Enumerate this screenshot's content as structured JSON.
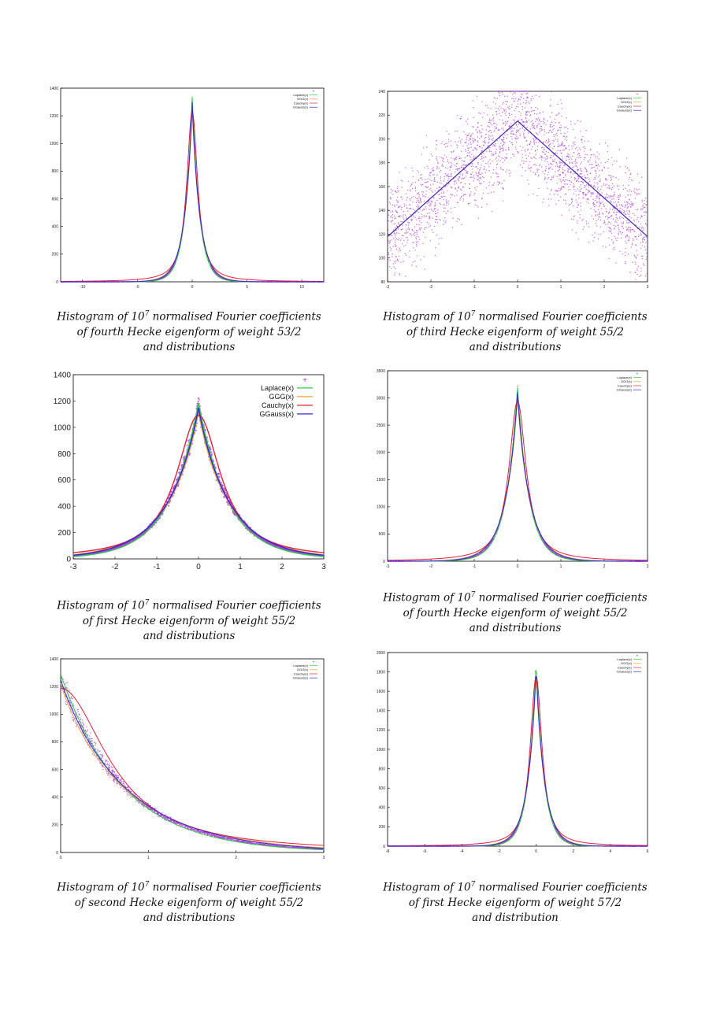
{
  "figures": [
    {
      "caption": {
        "prefix": "Histogram of 10",
        "exp": "7",
        "suffix": " normalised Fourier coefficients",
        "line2": "of fourth Hecke eigenform of weight 53/2",
        "line3": "and distributions"
      },
      "chart_data": {
        "type": "scatter",
        "xlim": [
          -12,
          12
        ],
        "ylim": [
          0,
          1400
        ],
        "xticks": [
          -10,
          -5,
          0,
          5,
          10
        ],
        "yticks": [
          0,
          200,
          400,
          600,
          800,
          1000,
          1200,
          1400
        ],
        "peak": 1300,
        "center": 0,
        "scale": 0.7,
        "noise": 0.02,
        "legend": [
          "Laplace(x)",
          "GGG(x)",
          "Cauchy(x)",
          "GGauss(x)"
        ],
        "legend_position": "top-right",
        "grid": false
      }
    },
    {
      "caption": {
        "prefix": "Histogram of 10",
        "exp": "7",
        "suffix": " normalised Fourier coefficients",
        "line2": "of third Hecke eigenform of weight 55/2",
        "line3": "and distributions"
      },
      "chart_data": {
        "type": "scatter",
        "xlim": [
          -3,
          3
        ],
        "ylim": [
          80,
          240
        ],
        "xticks": [
          -3,
          -2,
          -1,
          0,
          1,
          2,
          3
        ],
        "yticks": [
          80,
          100,
          120,
          140,
          160,
          180,
          200,
          220,
          240
        ],
        "peak": 215,
        "center": 0,
        "scale": 3.7,
        "noise": 0.08,
        "legend": [
          "Laplace(x)",
          "GGG(x)",
          "Cauchy(x)",
          "GGauss(x)"
        ],
        "legend_position": "top-right",
        "grid": false
      }
    },
    {
      "caption": {
        "prefix": "Histogram of 10",
        "exp": "7",
        "suffix": " normalised Fourier coefficients",
        "line2": "of first Hecke eigenform of weight 55/2",
        "line3": "and distributions"
      },
      "chart_data": {
        "type": "scatter",
        "xlim": [
          -3,
          3
        ],
        "ylim": [
          0,
          1400
        ],
        "xticks": [
          -3,
          -2,
          -1,
          0,
          1,
          2,
          3
        ],
        "yticks": [
          0,
          200,
          400,
          600,
          800,
          1000,
          1200,
          1400
        ],
        "peak": 1150,
        "center": 0,
        "scale": 0.75,
        "noise": 0.03,
        "legend": [
          "Laplace(x)",
          "GGG(x)",
          "Cauchy(x)",
          "GGauss(x)"
        ],
        "legend_position": "top-right",
        "grid": false
      }
    },
    {
      "caption": {
        "prefix": "Histogram of 10",
        "exp": "7",
        "suffix": " normalised Fourier coefficients",
        "line2": "of fourth Hecke eigenform of weight 55/2",
        "line3": "and distributions"
      },
      "chart_data": {
        "type": "scatter",
        "xlim": [
          -3,
          3
        ],
        "ylim": [
          0,
          3500
        ],
        "xticks": [
          -3,
          -2,
          -1,
          0,
          1,
          2,
          3
        ],
        "yticks": [
          0,
          500,
          1000,
          1500,
          2000,
          2500,
          3000,
          3500
        ],
        "peak": 3100,
        "center": 0,
        "scale": 0.28,
        "noise": 0.02,
        "legend": [
          "Laplace(x)",
          "GGG(x)",
          "Cauchy(x)",
          "GGauss(x)"
        ],
        "legend_position": "top-right",
        "grid": false
      }
    },
    {
      "caption": {
        "prefix": "Histogram of 10",
        "exp": "7",
        "suffix": " normalised Fourier coefficients",
        "line2": "of second Hecke eigenform of weight 55/2",
        "line3": "and distributions"
      },
      "chart_data": {
        "type": "scatter",
        "xlim": [
          0,
          3
        ],
        "ylim": [
          0,
          1400
        ],
        "xticks": [
          0,
          1,
          2,
          3
        ],
        "yticks": [
          0,
          200,
          400,
          600,
          800,
          1000,
          1200,
          1400
        ],
        "peak": 1250,
        "center": 0,
        "scale": 0.75,
        "noise": 0.03,
        "legend": [
          "Laplace(x)",
          "GGG(x)",
          "Cauchy(x)",
          "GGauss(x)"
        ],
        "legend_position": "top-right",
        "grid": false
      }
    },
    {
      "caption": {
        "prefix": "Histogram of 10",
        "exp": "7",
        "suffix": " normalised Fourier coefficients",
        "line2": "of first Hecke eigenform of weight 57/2",
        "line3": "and distribution"
      },
      "chart_data": {
        "type": "scatter",
        "xlim": [
          -8,
          6
        ],
        "ylim": [
          0,
          2000
        ],
        "xticks": [
          -8,
          -6,
          -4,
          -2,
          0,
          2,
          4,
          6
        ],
        "yticks": [
          0,
          200,
          400,
          600,
          800,
          1000,
          1200,
          1400,
          1600,
          1800,
          2000
        ],
        "peak": 1850,
        "center": 0,
        "scale": 0.45,
        "noise": 0.02,
        "legend": [
          "Laplace(x)",
          "GGG(x)",
          "Cauchy(x)",
          "GGauss(x)"
        ],
        "legend_position": "top-right",
        "grid": false
      }
    }
  ],
  "colors": {
    "laplace": "#2ecc40",
    "ggg": "#e8a33d",
    "cauchy": "#e0223a",
    "ggauss": "#2b2bd9",
    "points": "#b33de0"
  }
}
